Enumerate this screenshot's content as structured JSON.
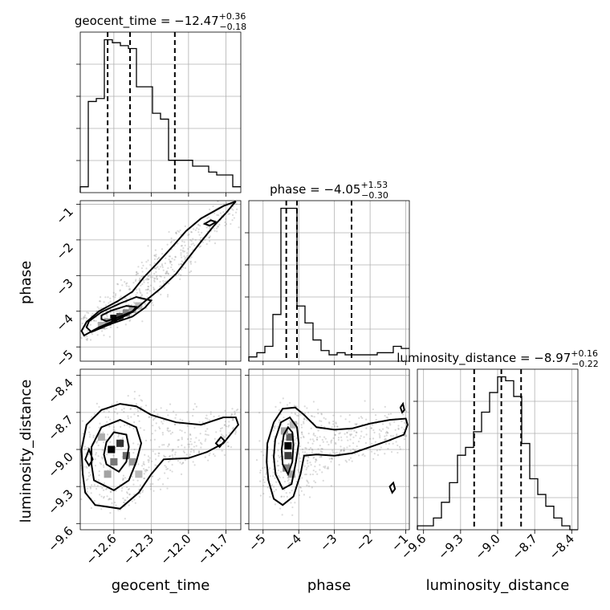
{
  "colors": {
    "ink": "#000000",
    "grid": "#b0b0b0",
    "points": "#7a7a7a"
  },
  "chart_data": {
    "type": "corner",
    "grid": true,
    "parameters": [
      {
        "key": "geocent_time",
        "label": "geocent_time",
        "range": [
          -12.87,
          -11.58
        ],
        "ticks": [
          -12.6,
          -12.3,
          -12.0,
          -11.7
        ],
        "tick_labels": [
          "−12.6",
          "−12.3",
          "−12.0",
          "−11.7"
        ]
      },
      {
        "key": "phase",
        "label": "phase",
        "range": [
          -5.4,
          -0.9
        ],
        "ticks": [
          -5,
          -4,
          -3,
          -2,
          -1
        ],
        "tick_labels": [
          "−5",
          "−4",
          "−3",
          "−2",
          "−1"
        ]
      },
      {
        "key": "luminosity_distance",
        "label": "luminosity_distance",
        "range": [
          -9.65,
          -8.35
        ],
        "ticks": [
          -9.6,
          -9.3,
          -9.0,
          -8.7,
          -8.4
        ],
        "tick_labels": [
          "−9.6",
          "−9.3",
          "−9.0",
          "−8.7",
          "−8.4"
        ]
      }
    ],
    "titles": [
      {
        "name": "geocent_time",
        "main": "geocent_time = −12.47",
        "sup": "+0.36",
        "sub": "−0.18"
      },
      {
        "name": "phase",
        "main": "phase = −4.05",
        "sup": "+1.53",
        "sub": "−0.30"
      },
      {
        "name": "luminosity_distance",
        "main": "luminosity_distance = −8.97",
        "sup": "+0.16",
        "sub": "−0.22"
      }
    ],
    "marginals": [
      {
        "param": "geocent_time",
        "edges": [
          -12.87,
          -12.8055,
          -12.741,
          -12.6765,
          -12.612,
          -12.5475,
          -12.483,
          -12.4185,
          -12.354,
          -12.2895,
          -12.225,
          -12.1605,
          -12.096,
          -12.0315,
          -11.967,
          -11.9025,
          -11.838,
          -11.7735,
          -11.709,
          -11.6445,
          -11.58
        ],
        "counts": [
          2,
          31,
          32,
          52,
          51,
          50,
          49,
          36,
          36,
          27,
          25,
          11,
          11,
          11,
          9,
          9,
          7,
          6,
          6,
          2
        ],
        "quantiles": [
          -12.65,
          -12.47,
          -12.11
        ]
      },
      {
        "param": "phase",
        "edges": [
          -5.4,
          -5.175,
          -4.95,
          -4.725,
          -4.5,
          -4.275,
          -4.05,
          -3.825,
          -3.6,
          -3.375,
          -3.15,
          -2.925,
          -2.7,
          -2.475,
          -2.25,
          -2.025,
          -1.8,
          -1.575,
          -1.35,
          -1.125,
          -0.9
        ],
        "counts": [
          2,
          4,
          7,
          22,
          72,
          72,
          26,
          18,
          10,
          5,
          3,
          4,
          3,
          3,
          3,
          3,
          4,
          4,
          7,
          6
        ],
        "quantiles": [
          -4.35,
          -4.05,
          -2.52
        ]
      },
      {
        "param": "luminosity_distance",
        "edges": [
          -9.65,
          -9.585,
          -9.52,
          -9.455,
          -9.39,
          -9.325,
          -9.26,
          -9.195,
          -9.13,
          -9.065,
          -9.0,
          -8.935,
          -8.87,
          -8.805,
          -8.74,
          -8.675,
          -8.61,
          -8.545,
          -8.48,
          -8.415,
          -8.35
        ],
        "counts": [
          1,
          1,
          3,
          7,
          12,
          19,
          21,
          25,
          30,
          35,
          39,
          38,
          34,
          22,
          13,
          9,
          6,
          3,
          1,
          0
        ],
        "quantiles": [
          -9.19,
          -8.97,
          -8.81
        ]
      }
    ],
    "pairs": [
      {
        "x": "geocent_time",
        "y": "phase",
        "contours": [
          [
            [
              -12.84,
              -4.68
            ],
            [
              -12.72,
              -4.45
            ],
            [
              -12.55,
              -4.2
            ],
            [
              -12.45,
              -4.02
            ],
            [
              -12.35,
              -3.72
            ],
            [
              -12.22,
              -3.35
            ],
            [
              -12.1,
              -2.95
            ],
            [
              -12.0,
              -2.5
            ],
            [
              -11.9,
              -2.05
            ],
            [
              -11.8,
              -1.62
            ],
            [
              -11.7,
              -1.25
            ],
            [
              -11.64,
              -1.0
            ],
            [
              -11.62,
              -0.92
            ],
            [
              -11.72,
              -1.05
            ],
            [
              -11.9,
              -1.4
            ],
            [
              -12.02,
              -1.75
            ],
            [
              -12.12,
              -2.15
            ],
            [
              -12.25,
              -2.65
            ],
            [
              -12.36,
              -3.05
            ],
            [
              -12.45,
              -3.45
            ],
            [
              -12.57,
              -3.72
            ],
            [
              -12.72,
              -4.0
            ],
            [
              -12.82,
              -4.3
            ],
            [
              -12.86,
              -4.55
            ],
            [
              -12.84,
              -4.68
            ]
          ],
          [
            [
              -12.78,
              -4.58
            ],
            [
              -12.62,
              -4.35
            ],
            [
              -12.45,
              -4.15
            ],
            [
              -12.35,
              -3.9
            ],
            [
              -12.3,
              -3.7
            ],
            [
              -12.42,
              -3.6
            ],
            [
              -12.55,
              -3.78
            ],
            [
              -12.7,
              -4.02
            ],
            [
              -12.8,
              -4.28
            ],
            [
              -12.82,
              -4.45
            ],
            [
              -12.78,
              -4.58
            ]
          ],
          [
            [
              -12.66,
              -4.28
            ],
            [
              -12.55,
              -4.15
            ],
            [
              -12.45,
              -4.0
            ],
            [
              -12.42,
              -3.88
            ],
            [
              -12.5,
              -3.85
            ],
            [
              -12.62,
              -3.98
            ],
            [
              -12.7,
              -4.12
            ],
            [
              -12.7,
              -4.22
            ],
            [
              -12.66,
              -4.28
            ]
          ],
          [
            [
              -11.87,
              -1.55
            ],
            [
              -11.82,
              -1.45
            ],
            [
              -11.78,
              -1.5
            ],
            [
              -11.83,
              -1.6
            ],
            [
              -11.87,
              -1.55
            ]
          ]
        ],
        "density_cells": [
          {
            "x": -12.6,
            "y": -4.2,
            "level": 1.0
          },
          {
            "x": -12.55,
            "y": -4.15,
            "level": 0.7
          },
          {
            "x": -12.5,
            "y": -4.05,
            "level": 0.45
          },
          {
            "x": -12.45,
            "y": -3.95,
            "level": 0.3
          },
          {
            "x": -12.4,
            "y": -3.85,
            "level": 0.2
          },
          {
            "x": -12.65,
            "y": -4.3,
            "level": 0.35
          },
          {
            "x": -12.7,
            "y": -4.4,
            "level": 0.25
          }
        ]
      },
      {
        "x": "geocent_time",
        "y": "luminosity_distance",
        "contours": [
          [
            [
              -12.83,
              -9.35
            ],
            [
              -12.75,
              -9.45
            ],
            [
              -12.55,
              -9.48
            ],
            [
              -12.4,
              -9.35
            ],
            [
              -12.3,
              -9.2
            ],
            [
              -12.2,
              -9.08
            ],
            [
              -12.0,
              -9.07
            ],
            [
              -11.85,
              -9.02
            ],
            [
              -11.72,
              -8.95
            ],
            [
              -11.6,
              -8.8
            ],
            [
              -11.62,
              -8.74
            ],
            [
              -11.72,
              -8.74
            ],
            [
              -11.9,
              -8.8
            ],
            [
              -12.1,
              -8.78
            ],
            [
              -12.3,
              -8.72
            ],
            [
              -12.42,
              -8.65
            ],
            [
              -12.55,
              -8.63
            ],
            [
              -12.7,
              -8.68
            ],
            [
              -12.82,
              -8.8
            ],
            [
              -12.86,
              -9.0
            ],
            [
              -12.85,
              -9.2
            ],
            [
              -12.83,
              -9.35
            ]
          ],
          [
            [
              -12.76,
              -9.25
            ],
            [
              -12.6,
              -9.33
            ],
            [
              -12.48,
              -9.25
            ],
            [
              -12.42,
              -9.1
            ],
            [
              -12.38,
              -8.95
            ],
            [
              -12.42,
              -8.82
            ],
            [
              -12.55,
              -8.76
            ],
            [
              -12.7,
              -8.82
            ],
            [
              -12.78,
              -8.98
            ],
            [
              -12.78,
              -9.12
            ],
            [
              -12.76,
              -9.25
            ]
          ],
          [
            [
              -12.66,
              -9.12
            ],
            [
              -12.56,
              -9.18
            ],
            [
              -12.5,
              -9.1
            ],
            [
              -12.48,
              -8.98
            ],
            [
              -12.5,
              -8.88
            ],
            [
              -12.6,
              -8.86
            ],
            [
              -12.66,
              -8.94
            ],
            [
              -12.68,
              -9.04
            ],
            [
              -12.66,
              -9.12
            ]
          ],
          [
            [
              -12.83,
              -9.08
            ],
            [
              -12.8,
              -9.0
            ],
            [
              -12.77,
              -9.08
            ],
            [
              -12.8,
              -9.13
            ],
            [
              -12.83,
              -9.08
            ]
          ],
          [
            [
              -11.78,
              -8.95
            ],
            [
              -11.74,
              -8.9
            ],
            [
              -11.71,
              -8.93
            ],
            [
              -11.75,
              -8.98
            ],
            [
              -11.78,
              -8.95
            ]
          ]
        ],
        "density_cells": [
          {
            "x": -12.62,
            "y": -9.0,
            "level": 1.0
          },
          {
            "x": -12.55,
            "y": -8.95,
            "level": 0.8
          },
          {
            "x": -12.5,
            "y": -9.05,
            "level": 0.55
          },
          {
            "x": -12.6,
            "y": -9.1,
            "level": 0.5
          },
          {
            "x": -12.45,
            "y": -9.1,
            "level": 0.35
          },
          {
            "x": -12.65,
            "y": -9.2,
            "level": 0.3
          },
          {
            "x": -12.4,
            "y": -9.2,
            "level": 0.2
          },
          {
            "x": -12.7,
            "y": -8.9,
            "level": 0.25
          }
        ]
      },
      {
        "x": "phase",
        "y": "luminosity_distance",
        "contours": [
          [
            [
              -4.85,
              -9.25
            ],
            [
              -4.7,
              -9.4
            ],
            [
              -4.45,
              -9.45
            ],
            [
              -4.15,
              -9.38
            ],
            [
              -3.95,
              -9.2
            ],
            [
              -3.85,
              -9.05
            ],
            [
              -3.5,
              -9.04
            ],
            [
              -3.0,
              -9.05
            ],
            [
              -2.5,
              -9.03
            ],
            [
              -2.0,
              -8.98
            ],
            [
              -1.5,
              -8.93
            ],
            [
              -1.05,
              -8.88
            ],
            [
              -0.95,
              -8.8
            ],
            [
              -1.0,
              -8.75
            ],
            [
              -1.45,
              -8.76
            ],
            [
              -2.0,
              -8.79
            ],
            [
              -2.5,
              -8.83
            ],
            [
              -3.0,
              -8.84
            ],
            [
              -3.5,
              -8.82
            ],
            [
              -3.85,
              -8.72
            ],
            [
              -4.1,
              -8.66
            ],
            [
              -4.45,
              -8.67
            ],
            [
              -4.7,
              -8.78
            ],
            [
              -4.88,
              -8.95
            ],
            [
              -4.9,
              -9.1
            ],
            [
              -4.85,
              -9.25
            ]
          ],
          [
            [
              -4.65,
              -9.2
            ],
            [
              -4.45,
              -9.32
            ],
            [
              -4.2,
              -9.28
            ],
            [
              -4.08,
              -9.1
            ],
            [
              -4.0,
              -8.95
            ],
            [
              -4.05,
              -8.82
            ],
            [
              -4.25,
              -8.74
            ],
            [
              -4.5,
              -8.78
            ],
            [
              -4.66,
              -8.92
            ],
            [
              -4.7,
              -9.06
            ],
            [
              -4.65,
              -9.2
            ]
          ],
          [
            [
              -4.45,
              -9.12
            ],
            [
              -4.3,
              -9.2
            ],
            [
              -4.18,
              -9.1
            ],
            [
              -4.15,
              -8.96
            ],
            [
              -4.18,
              -8.86
            ],
            [
              -4.3,
              -8.82
            ],
            [
              -4.42,
              -8.88
            ],
            [
              -4.48,
              -9.0
            ],
            [
              -4.45,
              -9.12
            ]
          ],
          [
            [
              -1.45,
              -9.3
            ],
            [
              -1.35,
              -9.27
            ],
            [
              -1.3,
              -9.32
            ],
            [
              -1.38,
              -9.35
            ],
            [
              -1.45,
              -9.3
            ]
          ],
          [
            [
              -1.15,
              -8.66
            ],
            [
              -1.08,
              -8.63
            ],
            [
              -1.04,
              -8.68
            ],
            [
              -1.1,
              -8.7
            ],
            [
              -1.15,
              -8.66
            ]
          ]
        ],
        "density_cells": [
          {
            "x": -4.3,
            "y": -8.97,
            "level": 1.0
          },
          {
            "x": -4.3,
            "y": -9.05,
            "level": 0.75
          },
          {
            "x": -4.25,
            "y": -8.9,
            "level": 0.6
          },
          {
            "x": -4.35,
            "y": -9.15,
            "level": 0.45
          },
          {
            "x": -4.2,
            "y": -9.2,
            "level": 0.3
          },
          {
            "x": -4.4,
            "y": -8.85,
            "level": 0.3
          },
          {
            "x": -4.15,
            "y": -8.8,
            "level": 0.2
          }
        ]
      }
    ]
  }
}
